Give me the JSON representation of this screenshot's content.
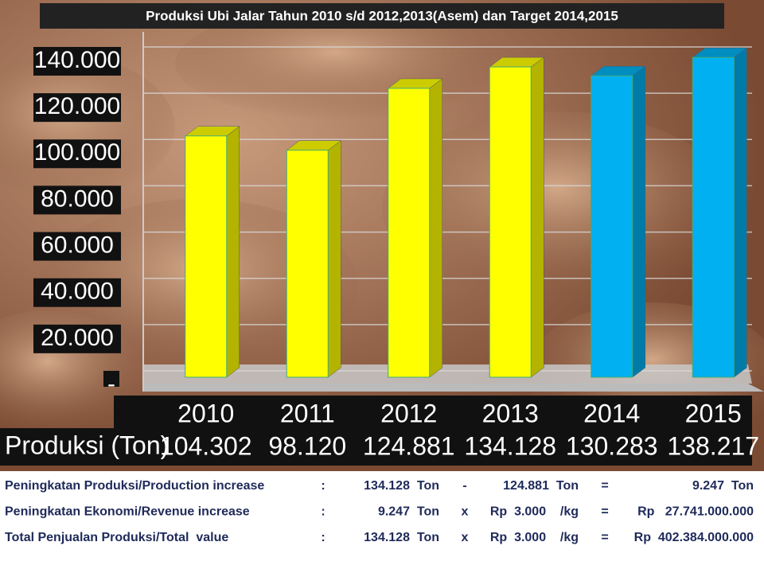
{
  "chart_data": {
    "type": "bar",
    "title": "Produksi Ubi Jalar Tahun 2010 s/d 2012,2013(Asem)  dan Target  2014,2015",
    "categories": [
      "2010",
      "2011",
      "2012",
      "2013",
      "2014",
      "2015"
    ],
    "values": [
      104302,
      98120,
      124881,
      134128,
      130283,
      138217
    ],
    "value_labels": [
      "104.302",
      "98.120",
      "124.881",
      "134.128",
      "130.283",
      "138.217"
    ],
    "colors": [
      "#ffff00",
      "#ffff00",
      "#ffff00",
      "#ffff00",
      "#00b0f0",
      "#00b0f0"
    ],
    "row_label": "Produksi (Ton)",
    "ylim": [
      0,
      140000
    ],
    "yticks": [
      {
        "value": 0,
        "label": "-"
      },
      {
        "value": 20000,
        "label": "20.000"
      },
      {
        "value": 40000,
        "label": "40.000"
      },
      {
        "value": 60000,
        "label": "60.000"
      },
      {
        "value": 80000,
        "label": "80.000"
      },
      {
        "value": 100000,
        "label": "100.000"
      },
      {
        "value": 120000,
        "label": "120.000"
      },
      {
        "value": 140000,
        "label": "140.000"
      }
    ],
    "grid": true
  },
  "notes": [
    [
      "Peningkatan Produksi/Production increase",
      ":",
      "134.128  Ton",
      "-",
      "124.881  Ton",
      "=",
      "9.247  Ton"
    ],
    [
      "Peningkatan Ekonomi/Revenue increase",
      ":",
      "9.247  Ton",
      "x",
      "Rp  3.000    /kg",
      "=",
      "Rp   27.741.000.000"
    ],
    [
      "Total Penjualan Produksi/Total  value",
      ":",
      "134.128  Ton",
      "x",
      "Rp  3.000    /kg",
      "=",
      "Rp  402.384.000.000"
    ]
  ]
}
